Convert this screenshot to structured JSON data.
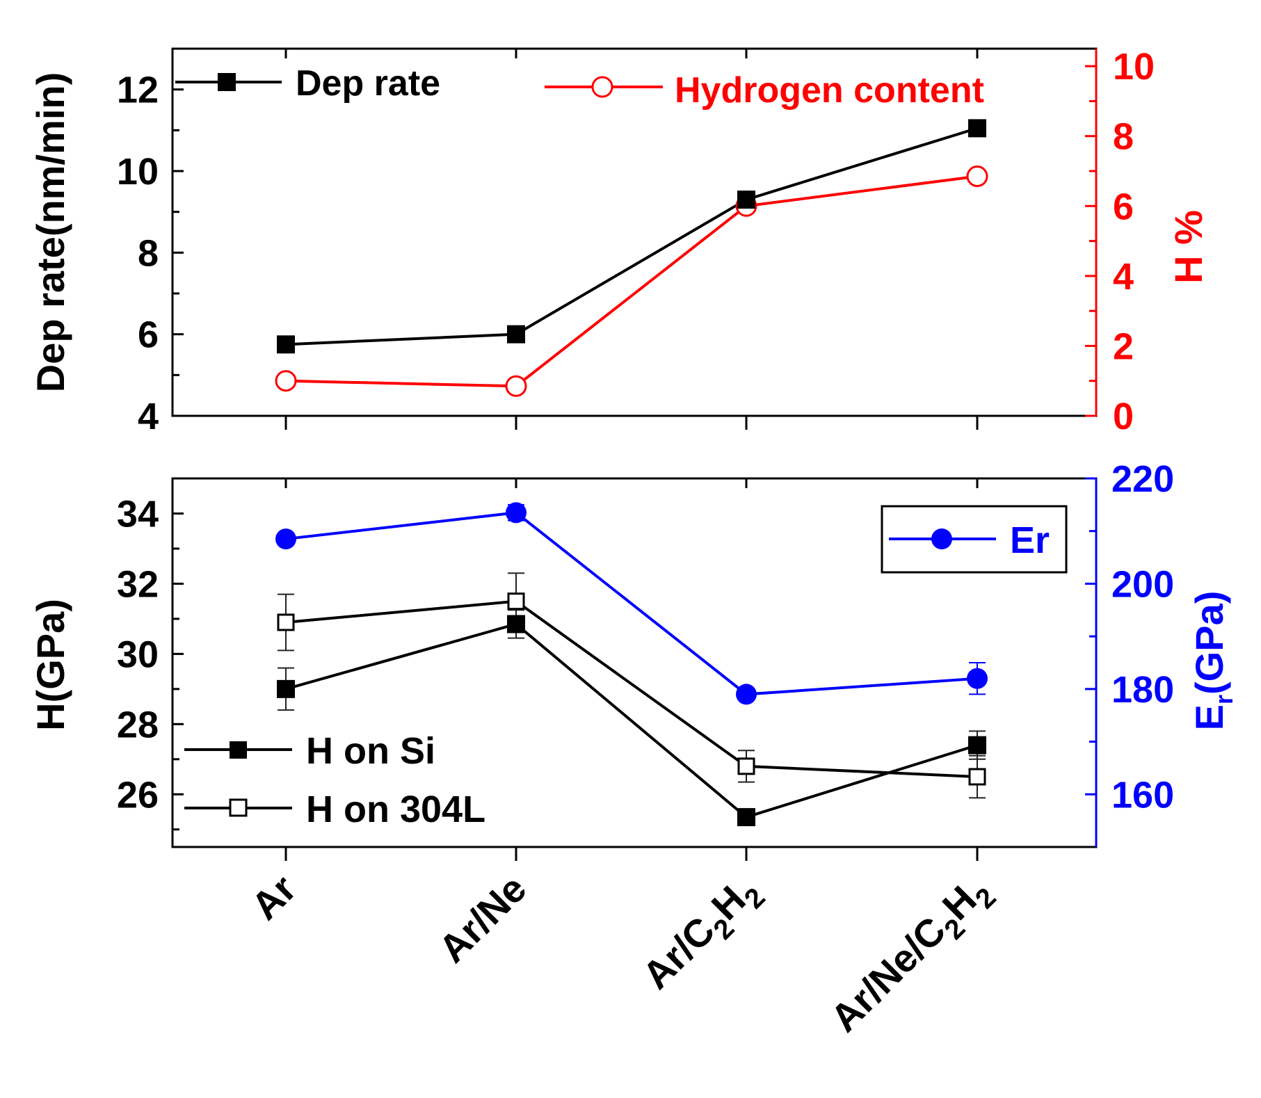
{
  "chart_data": [
    {
      "type": "line",
      "panel": "top",
      "categories": [
        "Ar",
        "Ar/Ne",
        "Ar/C2H2",
        "Ar/Ne/C2H2"
      ],
      "category_labels": [
        {
          "base": "Ar",
          "sub": "",
          "mid": "",
          "sub2": ""
        },
        {
          "base": "Ar/Ne",
          "sub": "",
          "mid": "",
          "sub2": ""
        },
        {
          "base": "Ar/C",
          "sub": "2",
          "mid": "H",
          "sub2": "2"
        },
        {
          "base": "Ar/Ne/C",
          "sub": "2",
          "mid": "H",
          "sub2": "2"
        }
      ],
      "ylabel_left": "Dep rate(nm/min)",
      "ylim_left": [
        4,
        13
      ],
      "yticks_left": [
        "4",
        "6",
        "8",
        "10",
        "12"
      ],
      "ylabel_right": "H %",
      "ylim_right": [
        0,
        10.5
      ],
      "yticks_right": [
        "0",
        "2",
        "4",
        "6",
        "8",
        "10"
      ],
      "series": [
        {
          "name": "Dep rate",
          "axis": "left",
          "marker": "filled-square",
          "color": "#000000",
          "values": [
            5.75,
            6.0,
            9.3,
            11.05
          ]
        },
        {
          "name": "Hydrogen content",
          "axis": "right",
          "marker": "open-circle",
          "color": "#ff0000",
          "values": [
            1.0,
            0.85,
            6.0,
            6.85
          ]
        }
      ]
    },
    {
      "type": "line",
      "panel": "bottom",
      "categories": [
        "Ar",
        "Ar/Ne",
        "Ar/C2H2",
        "Ar/Ne/C2H2"
      ],
      "ylabel_left": "H(GPa)",
      "ylim_left": [
        24.5,
        35
      ],
      "yticks_left": [
        "26",
        "28",
        "30",
        "32",
        "34"
      ],
      "ylabel_right": "Er(GPa)",
      "ylabel_right_base": "E",
      "ylabel_right_sub": "r",
      "ylabel_right_rest": "(GPa)",
      "ylim_right": [
        150,
        220
      ],
      "yticks_right": [
        "160",
        "180",
        "200",
        "220"
      ],
      "series": [
        {
          "name": "H on Si",
          "axis": "left",
          "marker": "filled-square",
          "color": "#000000",
          "values": [
            29.0,
            30.85,
            25.35,
            27.4
          ],
          "errors": [
            0.6,
            0.4,
            0.0,
            0.4
          ]
        },
        {
          "name": "H on 304L",
          "axis": "left",
          "marker": "open-square",
          "color": "#000000",
          "values": [
            30.9,
            31.5,
            26.8,
            26.5
          ],
          "errors": [
            0.8,
            0.8,
            0.45,
            0.6
          ]
        },
        {
          "name": "Er",
          "axis": "right",
          "marker": "filled-circle",
          "color": "#0000ff",
          "values": [
            208.5,
            213.5,
            179,
            182
          ],
          "errors": [
            0,
            1.5,
            0,
            3
          ]
        }
      ]
    }
  ],
  "colors": {
    "axis": "#000000",
    "hydrogen": "#ff0000",
    "er": "#0000ff"
  }
}
